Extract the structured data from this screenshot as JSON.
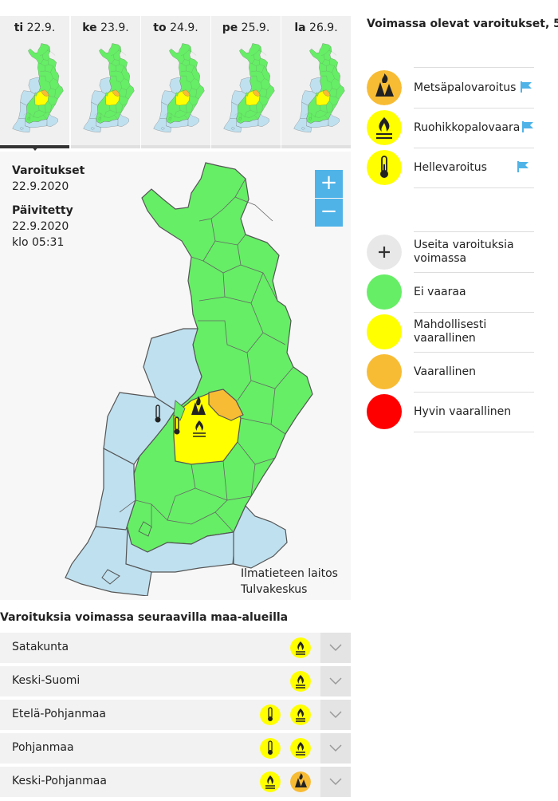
{
  "days": [
    {
      "dow": "ti",
      "date": "22.9.",
      "active": true
    },
    {
      "dow": "ke",
      "date": "23.9.",
      "active": false
    },
    {
      "dow": "to",
      "date": "24.9.",
      "active": false
    },
    {
      "dow": "pe",
      "date": "25.9.",
      "active": false
    },
    {
      "dow": "la",
      "date": "26.9.",
      "active": false
    }
  ],
  "info": {
    "warnings_label": "Varoitukset",
    "warnings_date": "22.9.2020",
    "updated_label": "Päivitetty",
    "updated_date": "22.9.2020",
    "updated_time": "klo 05:31"
  },
  "zoom": {
    "in": "+",
    "out": "−"
  },
  "credits": {
    "line1": "Ilmatieteen laitos",
    "line2": "Tulvakeskus"
  },
  "regions_title": "Varoituksia voimassa seuraavilla maa-alueilla",
  "regions": [
    {
      "name": "Satakunta",
      "icons": [
        {
          "type": "grass-fire-icon",
          "color": "#ffff00"
        }
      ]
    },
    {
      "name": "Keski-Suomi",
      "icons": [
        {
          "type": "grass-fire-icon",
          "color": "#ffff00"
        }
      ]
    },
    {
      "name": "Etelä-Pohjanmaa",
      "icons": [
        {
          "type": "thermometer-icon",
          "color": "#ffff00"
        },
        {
          "type": "grass-fire-icon",
          "color": "#ffff00"
        }
      ]
    },
    {
      "name": "Pohjanmaa",
      "icons": [
        {
          "type": "thermometer-icon",
          "color": "#ffff00"
        },
        {
          "type": "grass-fire-icon",
          "color": "#ffff00"
        }
      ]
    },
    {
      "name": "Keski-Pohjanmaa",
      "icons": [
        {
          "type": "grass-fire-icon",
          "color": "#ffff00"
        },
        {
          "type": "forest-fire-icon",
          "color": "#f8bc34"
        }
      ]
    }
  ],
  "legend": {
    "title": "Voimassa olevat varoitukset, 5",
    "warnings": [
      {
        "label": "Metsäpalovaroitus",
        "icon": "forest-fire-icon",
        "color": "#f8bc34"
      },
      {
        "label": "Ruohikkopalovaara",
        "icon": "grass-fire-icon",
        "color": "#ffff00"
      },
      {
        "label": "Hellevaroitus",
        "icon": "thermometer-icon",
        "color": "#ffff00"
      }
    ],
    "levels": [
      {
        "label": "Useita varoituksia voimassa",
        "icon": "plus-icon",
        "color": "#e8e8e8"
      },
      {
        "label": "Ei vaaraa",
        "color": "#66ee66"
      },
      {
        "label": "Mahdollisesti vaarallinen",
        "color": "#ffff00"
      },
      {
        "label": "Vaarallinen",
        "color": "#f8bc34"
      },
      {
        "label": "Hyvin vaarallinen",
        "color": "#ff0000"
      }
    ]
  },
  "colors": {
    "land_ok": "#66ee66",
    "sea": "#bfe0ef",
    "yellow": "#ffff00",
    "orange": "#f8bc34",
    "accent": "#4fb3e8"
  }
}
